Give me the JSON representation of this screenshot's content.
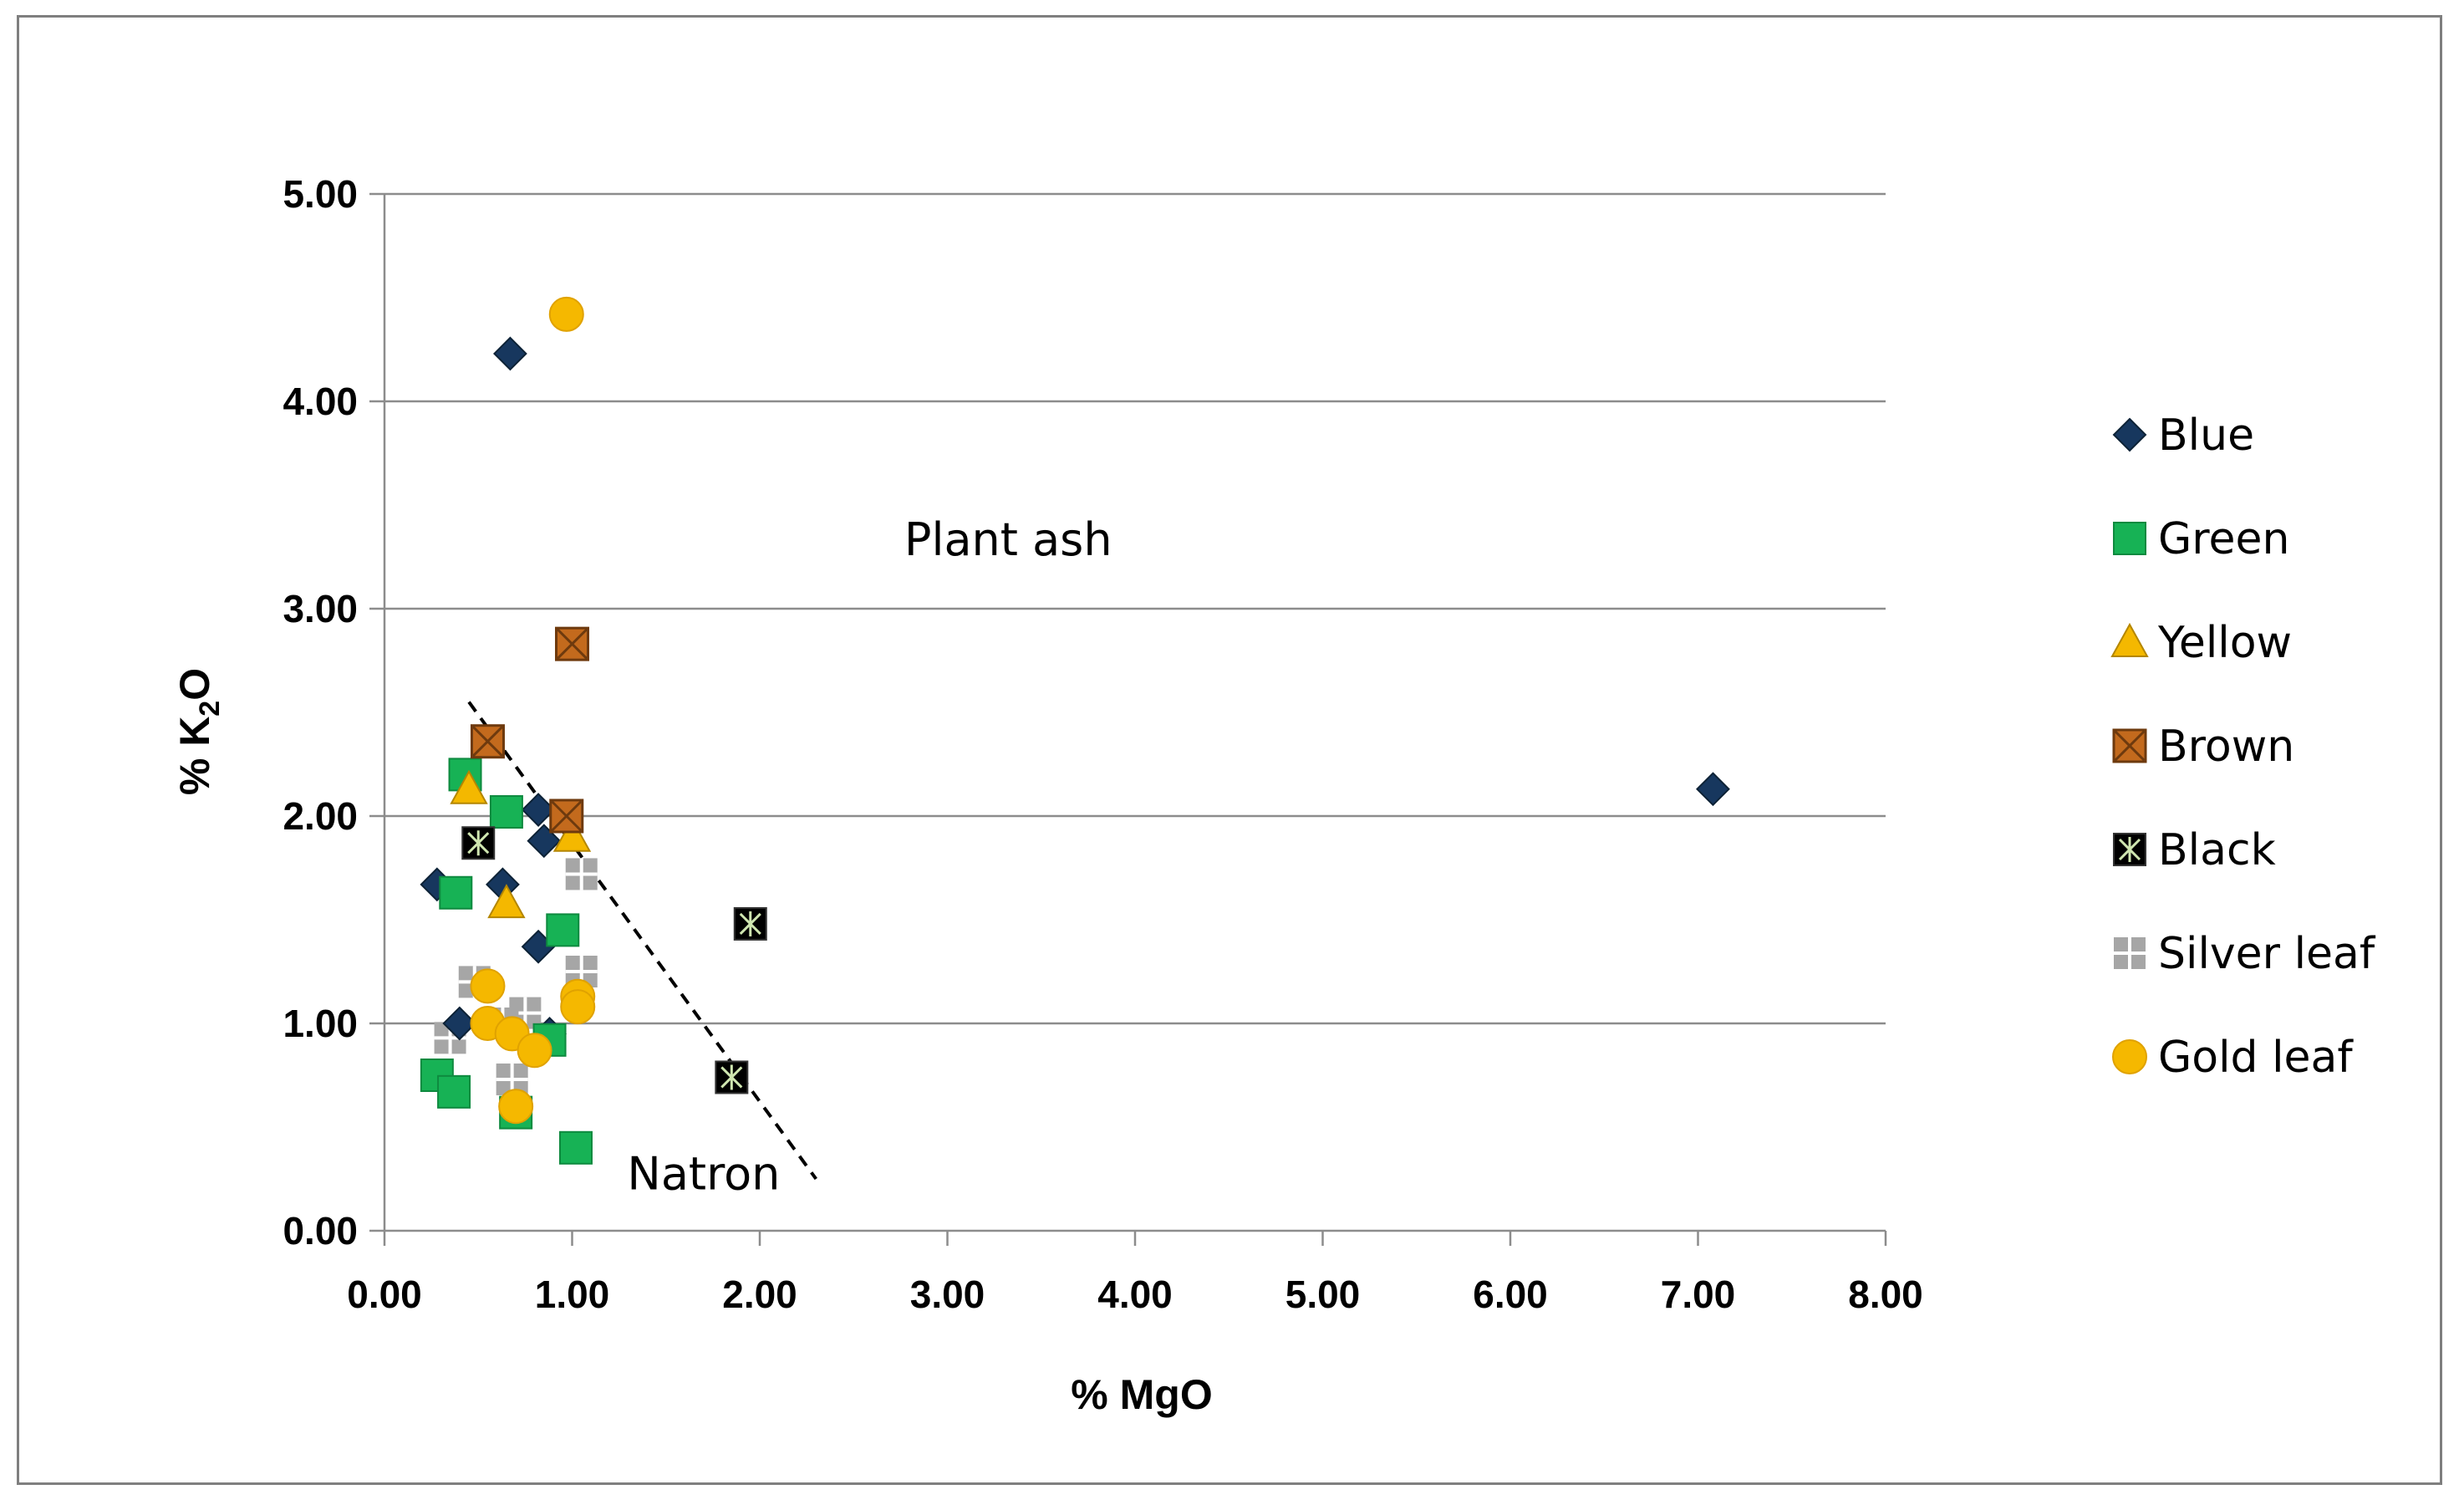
{
  "chart_data": {
    "type": "scatter",
    "xlabel": "% MgO",
    "ylabel": "% K",
    "ylabel_sub": "2",
    "ylabel_tail": "O",
    "xlim": [
      0,
      8
    ],
    "ylim": [
      0,
      5
    ],
    "x_ticks": [
      "0.00",
      "1.00",
      "2.00",
      "3.00",
      "4.00",
      "5.00",
      "6.00",
      "7.00",
      "8.00"
    ],
    "y_ticks": [
      "0.00",
      "1.00",
      "2.00",
      "3.00",
      "4.00",
      "5.00"
    ],
    "grid": "horizontal",
    "legend_position": "right",
    "annotations": [
      {
        "text": "Plant ash",
        "x": 3.75,
        "y": 3.33
      },
      {
        "text": "Natron",
        "x": 1.65,
        "y": 0.28
      }
    ],
    "divider_line": {
      "x": [
        0.45,
        2.3
      ],
      "y": [
        2.55,
        0.25
      ]
    },
    "series": [
      {
        "name": "Blue",
        "marker": "diamond",
        "color": "#17375e",
        "points": [
          [
            0.67,
            4.23
          ],
          [
            7.08,
            2.13
          ],
          [
            0.82,
            2.03
          ],
          [
            0.85,
            1.88
          ],
          [
            0.28,
            1.67
          ],
          [
            0.63,
            1.67
          ],
          [
            0.82,
            1.37
          ],
          [
            0.4,
            1.0
          ],
          [
            0.88,
            0.95
          ]
        ]
      },
      {
        "name": "Green",
        "marker": "square",
        "color": "#17b255",
        "points": [
          [
            0.43,
            2.2
          ],
          [
            0.65,
            2.02
          ],
          [
            0.38,
            1.63
          ],
          [
            0.95,
            1.45
          ],
          [
            0.88,
            0.92
          ],
          [
            0.28,
            0.75
          ],
          [
            0.37,
            0.67
          ],
          [
            0.7,
            0.57
          ],
          [
            1.02,
            0.4
          ]
        ]
      },
      {
        "name": "Yellow",
        "marker": "triangle",
        "color": "#f4b800",
        "points": [
          [
            0.45,
            2.13
          ],
          [
            1.0,
            1.9
          ],
          [
            0.65,
            1.58
          ]
        ]
      },
      {
        "name": "Brown",
        "marker": "box-x",
        "color": "#c36a1d",
        "points": [
          [
            1.0,
            2.83
          ],
          [
            0.55,
            2.36
          ],
          [
            0.97,
            2.0
          ]
        ]
      },
      {
        "name": "Black",
        "marker": "box-star",
        "color": "#000000",
        "points": [
          [
            0.5,
            1.87
          ],
          [
            1.95,
            1.48
          ],
          [
            1.85,
            0.74
          ]
        ]
      },
      {
        "name": "Silver leaf",
        "marker": "plus-square",
        "color": "#a6a6a6",
        "points": [
          [
            1.05,
            1.72
          ],
          [
            1.05,
            1.25
          ],
          [
            0.48,
            1.2
          ],
          [
            0.75,
            1.05
          ],
          [
            0.63,
            1.0
          ],
          [
            0.35,
            0.93
          ],
          [
            0.68,
            0.73
          ]
        ]
      },
      {
        "name": "Gold leaf",
        "marker": "circle",
        "color": "#f5b800",
        "points": [
          [
            0.97,
            4.42
          ],
          [
            0.55,
            1.18
          ],
          [
            1.03,
            1.13
          ],
          [
            1.03,
            1.08
          ],
          [
            0.55,
            1.0
          ],
          [
            0.68,
            0.95
          ],
          [
            0.8,
            0.87
          ],
          [
            0.7,
            0.6
          ]
        ]
      }
    ]
  }
}
